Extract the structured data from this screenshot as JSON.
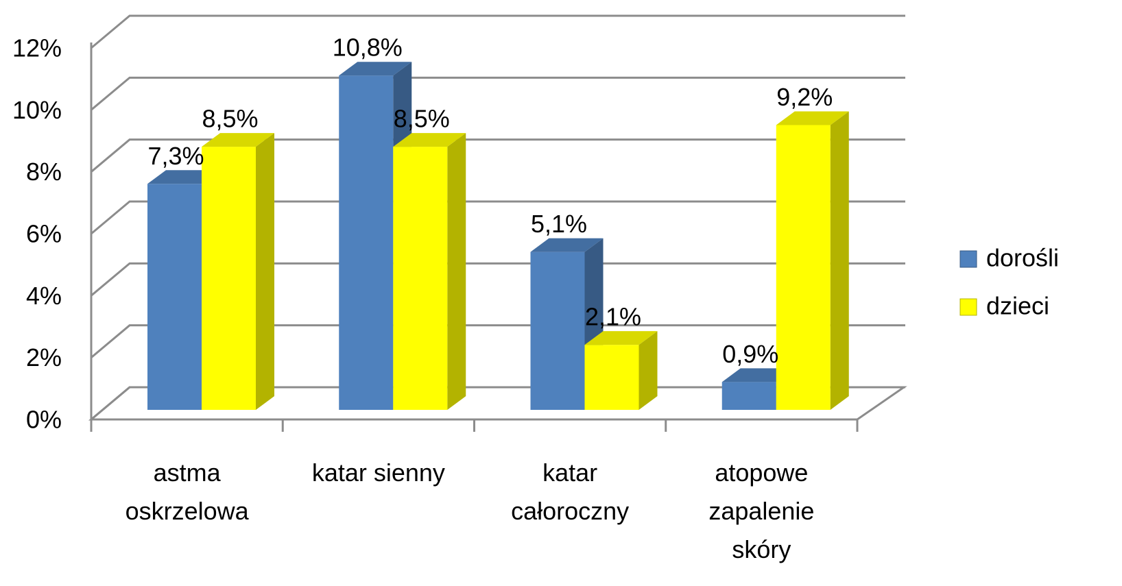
{
  "chart_data": {
    "type": "bar3d",
    "categories": [
      "astma oskrzelowa",
      "katar sienny",
      "katar całoroczny",
      "atopowe zapalenie skóry"
    ],
    "series": [
      {
        "name": "dorośli",
        "color": "#4f81bd",
        "values": [
          7.3,
          10.8,
          5.1,
          0.9
        ],
        "value_labels": [
          "7,3%",
          "10,8%",
          "5,1%",
          "0,9%"
        ]
      },
      {
        "name": "dzieci",
        "color": "#ffff00",
        "values": [
          8.5,
          8.5,
          2.1,
          9.2
        ],
        "value_labels": [
          "8,5%",
          "8,5%",
          "2,1%",
          "9,2%"
        ]
      }
    ],
    "ylim": [
      0,
      12
    ],
    "yticks": [
      {
        "value": 0,
        "label": "0%"
      },
      {
        "value": 2,
        "label": "2%"
      },
      {
        "value": 4,
        "label": "4%"
      },
      {
        "value": 6,
        "label": "6%"
      },
      {
        "value": 8,
        "label": "8%"
      },
      {
        "value": 10,
        "label": "10%"
      },
      {
        "value": 12,
        "label": "12%"
      }
    ],
    "grid": true,
    "legend": "right"
  }
}
